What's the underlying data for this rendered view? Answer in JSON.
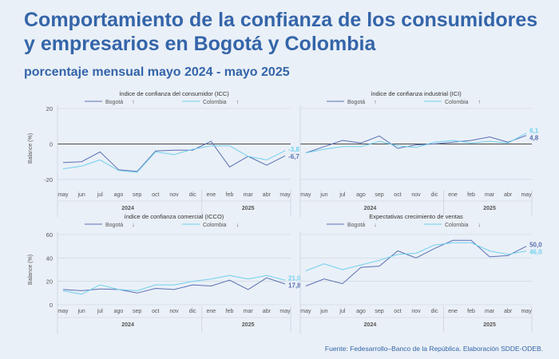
{
  "header": {
    "title": "Comportamiento de la confianza de los consumidores y empresarios en Bogotá y Colombia",
    "subtitle": "porcentaje mensual mayo 2024 - mayo 2025"
  },
  "footer": {
    "source": "Fuente: Fedesarrollo–Banco de la República. Elaboración SDDE-ODEB."
  },
  "colors": {
    "bogota": "#5a70b4",
    "colombia": "#6fd0ee",
    "title": "#3465a9",
    "grid": "#c9d2dc",
    "zero": "#333333"
  },
  "months": [
    "may",
    "jun",
    "jul",
    "ago",
    "sep",
    "oct",
    "nov",
    "dic",
    "ene",
    "feb",
    "mar",
    "abr",
    "may"
  ],
  "year_groups": [
    {
      "label": "2024",
      "from": 0,
      "to": 7
    },
    {
      "label": "2025",
      "from": 8,
      "to": 12
    }
  ],
  "chart_data": [
    {
      "type": "line",
      "title": "índice de confianza del consumidor (ICC)",
      "ylabel": "Balance (%)",
      "ylim": [
        -25,
        20
      ],
      "yticks": [
        20,
        0,
        -20
      ],
      "zero_line": true,
      "show_ylabel": true,
      "x": [
        "may",
        "jun",
        "jul",
        "ago",
        "sep",
        "oct",
        "nov",
        "dic",
        "ene",
        "feb",
        "mar",
        "abr",
        "may"
      ],
      "series": [
        {
          "name": "Bogotá",
          "arrow": "↑",
          "values": [
            -10.5,
            -10,
            -4.5,
            -14.5,
            -15.5,
            -4,
            -3.5,
            -3.5,
            1.5,
            -13,
            -7,
            -12,
            -6.7
          ],
          "end_label": "-6,7"
        },
        {
          "name": "Colombia",
          "arrow": "↑",
          "values": [
            -14,
            -12.5,
            -9,
            -15,
            -16,
            -4.5,
            -6,
            -3,
            -1,
            -1,
            -7,
            -9,
            -3.8
          ],
          "end_label": "-3,8"
        }
      ]
    },
    {
      "type": "line",
      "title": "índice de confianza industrial (ICI)",
      "ylabel": "",
      "ylim": [
        -25,
        20
      ],
      "yticks": [],
      "zero_line": true,
      "show_ylabel": false,
      "x": [
        "may",
        "jun",
        "jul",
        "ago",
        "sep",
        "oct",
        "nov",
        "dic",
        "ene",
        "feb",
        "mar",
        "abr",
        "may"
      ],
      "series": [
        {
          "name": "Bogotá",
          "arrow": "↑",
          "values": [
            -5,
            -1.5,
            2,
            0.5,
            4.5,
            -2.5,
            -0.5,
            0,
            1,
            2,
            4,
            1,
            4.8
          ],
          "end_label": "4,8"
        },
        {
          "name": "Colombia",
          "arrow": "↑",
          "values": [
            -5,
            -3,
            -1.5,
            -1.5,
            1.5,
            -1,
            -2,
            1,
            2,
            0.5,
            1.5,
            0.5,
            6.1
          ],
          "end_label": "6,1"
        }
      ]
    },
    {
      "type": "line",
      "title": "índice de confianza comercial (ICCO)",
      "ylabel": "Balance (%)",
      "ylim": [
        0,
        60
      ],
      "yticks": [
        60,
        40,
        20,
        0
      ],
      "zero_line": false,
      "show_ylabel": true,
      "x": [
        "may",
        "jun",
        "jul",
        "ago",
        "sep",
        "oct",
        "nov",
        "dic",
        "ene",
        "feb",
        "mar",
        "abr",
        "may"
      ],
      "series": [
        {
          "name": "Bogotá",
          "arrow": "↓",
          "values": [
            13,
            12,
            13.5,
            13,
            10,
            14,
            13,
            17,
            16,
            21,
            13,
            23,
            17.8
          ],
          "end_label": "17,8"
        },
        {
          "name": "Colombia",
          "arrow": "↓",
          "values": [
            12,
            9,
            17,
            13,
            12,
            17,
            17,
            20,
            22,
            25,
            22,
            25,
            21.0
          ],
          "end_label": "21,0"
        }
      ]
    },
    {
      "type": "line",
      "title": "Expectativas crecimiento de ventas",
      "ylabel": "",
      "ylim": [
        0,
        60
      ],
      "yticks": [],
      "zero_line": false,
      "show_ylabel": false,
      "x": [
        "may",
        "jun",
        "jul",
        "ago",
        "sep",
        "oct",
        "nov",
        "dic",
        "ene",
        "feb",
        "mar",
        "abr",
        "may"
      ],
      "series": [
        {
          "name": "Bogotá",
          "arrow": "↓",
          "values": [
            16,
            22,
            18,
            32,
            33,
            46,
            40,
            48,
            55,
            55,
            41,
            42,
            50.0
          ],
          "end_label": "50,0"
        },
        {
          "name": "Colombia",
          "arrow": "↓",
          "values": [
            29,
            35,
            30,
            34,
            38,
            43,
            44,
            51,
            53,
            53,
            46,
            43,
            46.0
          ],
          "end_label": "46,0"
        }
      ]
    }
  ]
}
